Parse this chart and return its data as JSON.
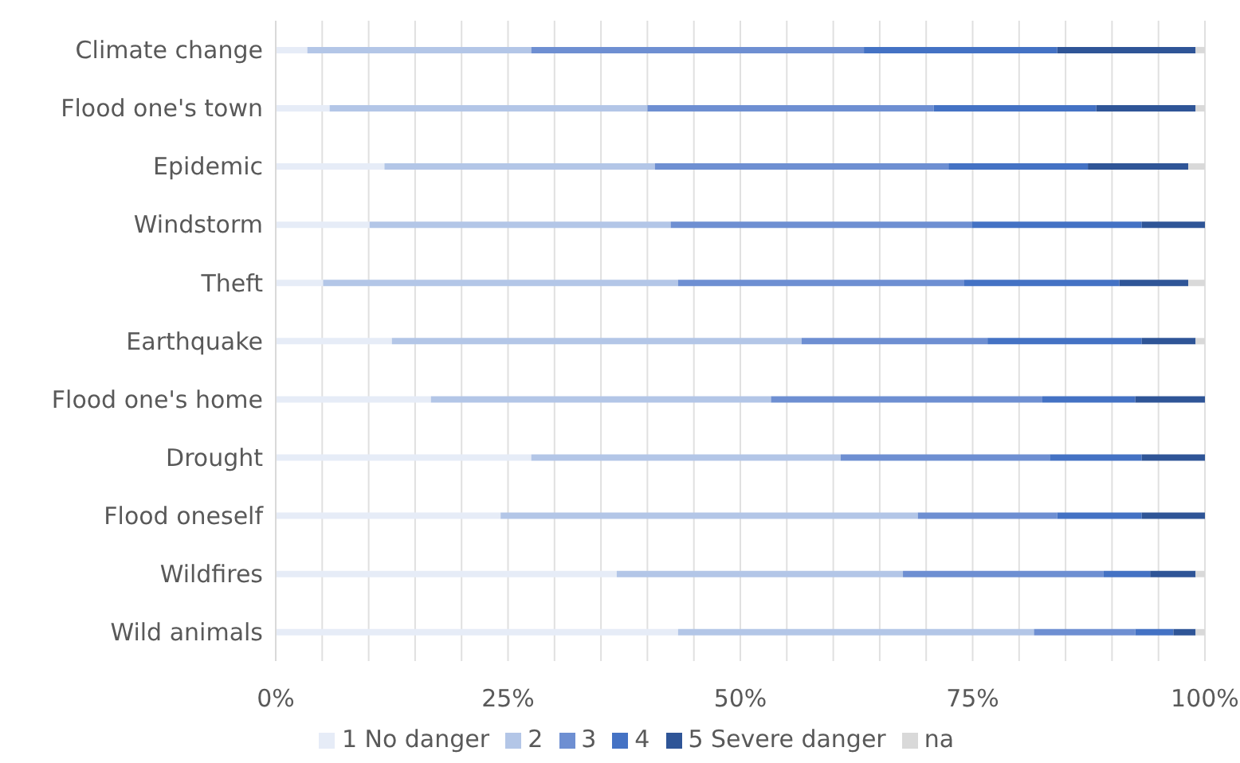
{
  "chart_data": {
    "type": "bar",
    "orientation": "horizontal",
    "stacked": true,
    "categories": [
      "Climate change",
      "Flood one's town",
      "Epidemic",
      "Windstorm",
      "Theft",
      "Earthquake",
      "Flood one's home",
      "Drought",
      "Flood oneself",
      "Wildfires",
      "Wild animals"
    ],
    "series": [
      {
        "name": "1 No danger",
        "color": "#e6ecf7",
        "values": [
          3.4,
          5.8,
          11.7,
          10.1,
          5.1,
          12.5,
          16.7,
          27.5,
          24.2,
          36.7,
          43.3
        ]
      },
      {
        "name": "2",
        "color": "#b3c6e7",
        "values": [
          24.1,
          34.2,
          29.1,
          32.4,
          38.2,
          44.1,
          36.6,
          33.3,
          44.9,
          30.8,
          38.3
        ]
      },
      {
        "name": "3",
        "color": "#6e8fd2",
        "values": [
          35.8,
          30.8,
          31.6,
          32.4,
          30.8,
          20.0,
          29.2,
          22.5,
          15.0,
          21.6,
          10.9
        ]
      },
      {
        "name": "4",
        "color": "#4472c4",
        "values": [
          20.8,
          17.5,
          15.0,
          18.3,
          16.7,
          16.6,
          10.0,
          9.9,
          9.1,
          5.0,
          4.1
        ]
      },
      {
        "name": "5 Severe danger",
        "color": "#2f5597",
        "values": [
          14.9,
          10.7,
          10.8,
          6.8,
          7.4,
          5.8,
          7.5,
          6.8,
          6.8,
          4.9,
          2.4
        ]
      },
      {
        "name": "na",
        "color": "#d9d9d9",
        "values": [
          1.0,
          1.0,
          1.8,
          0,
          1.8,
          1.0,
          0,
          0,
          0,
          1.0,
          1.0
        ]
      }
    ],
    "xlim": [
      0,
      100
    ],
    "xticks": [
      {
        "value": 0,
        "label": "0%"
      },
      {
        "value": 5,
        "label": null
      },
      {
        "value": 10,
        "label": null
      },
      {
        "value": 15,
        "label": null
      },
      {
        "value": 20,
        "label": null
      },
      {
        "value": 25,
        "label": "25%"
      },
      {
        "value": 30,
        "label": null
      },
      {
        "value": 35,
        "label": null
      },
      {
        "value": 40,
        "label": null
      },
      {
        "value": 45,
        "label": null
      },
      {
        "value": 50,
        "label": "50%"
      },
      {
        "value": 55,
        "label": null
      },
      {
        "value": 60,
        "label": null
      },
      {
        "value": 65,
        "label": null
      },
      {
        "value": 70,
        "label": null
      },
      {
        "value": 75,
        "label": "75%"
      },
      {
        "value": 80,
        "label": null
      },
      {
        "value": 85,
        "label": null
      },
      {
        "value": 90,
        "label": null
      },
      {
        "value": 95,
        "label": null
      },
      {
        "value": 100,
        "label": "100%"
      }
    ],
    "grid": "x",
    "legend": "bottom"
  }
}
